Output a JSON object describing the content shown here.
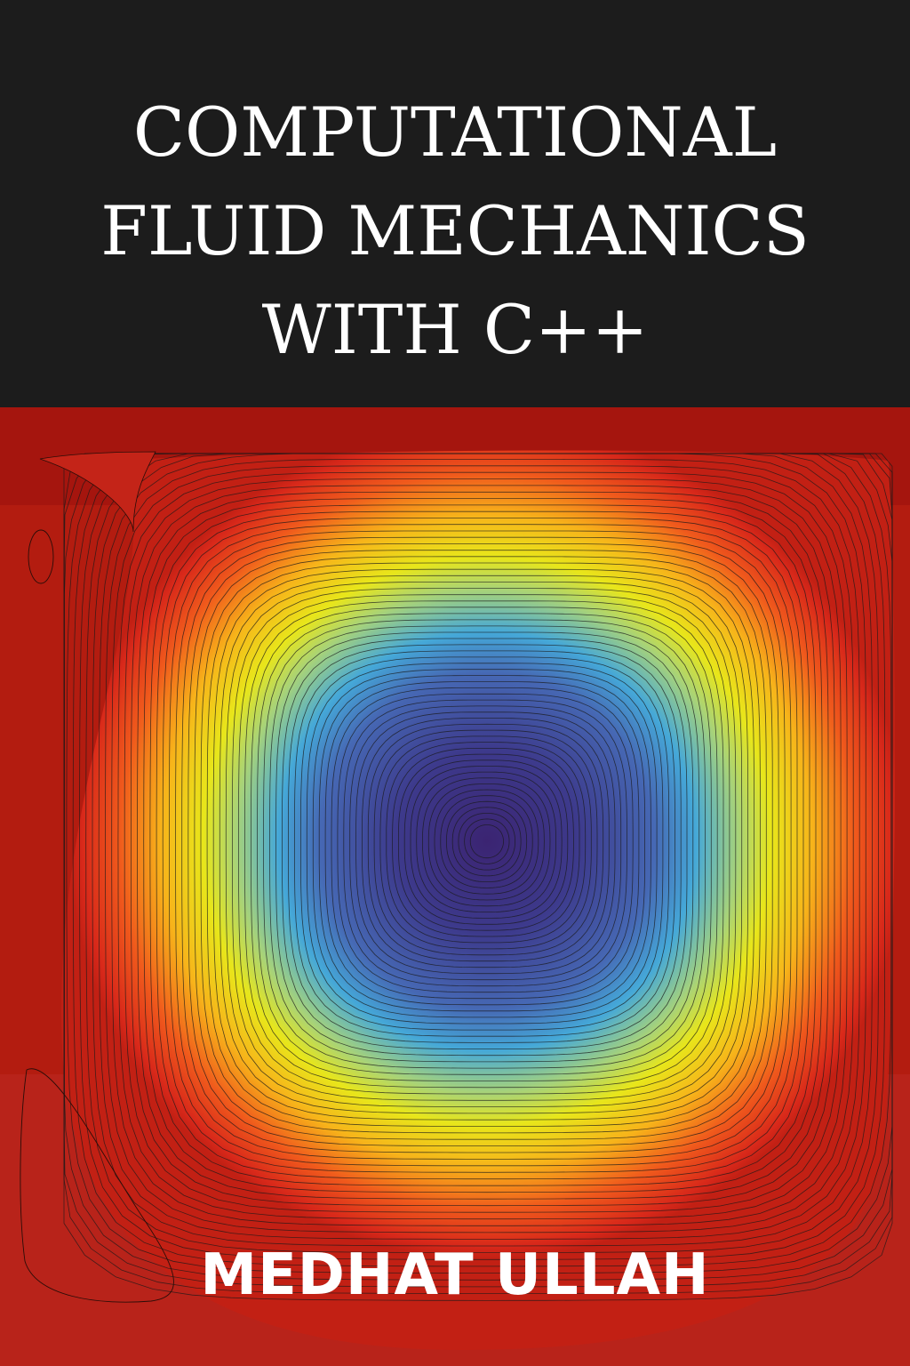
{
  "cover": {
    "title_lines": [
      "COMPUTATIONAL",
      "FLUID MECHANICS",
      "WITH C++"
    ],
    "author": "MEDHAT ULLAH"
  },
  "colors": {
    "title_band": "#1c1c1c",
    "title_text": "#ffffff",
    "background_red": "#b01e10",
    "vortex_core": "#3b2472"
  },
  "illustration": {
    "subject": "lid-driven-cavity-streamline-contours",
    "colormap": [
      "#3b2472",
      "#3f4aa0",
      "#45a8d8",
      "#e8e61a",
      "#f7a516",
      "#e6321c",
      "#b01e10"
    ]
  }
}
